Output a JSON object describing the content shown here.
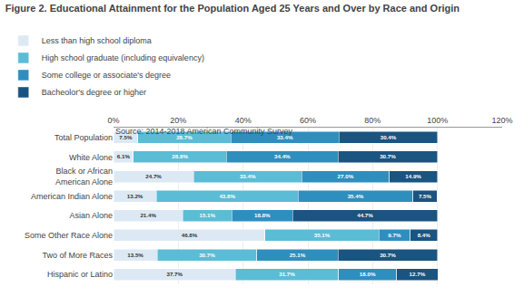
{
  "chart_data": {
    "type": "bar",
    "orientation": "horizontal",
    "stacked": true,
    "data_labels": true,
    "title": "Figure 2. Educational Attainment for the Population Aged 25 Years and Over by Race and Origin",
    "annotations": [
      "Source: 2014-2018 American Community Survey"
    ],
    "categories": [
      "Total Population",
      "White Alone",
      "Black or African\nAmerican Alone",
      "American Indian Alone",
      "Asian Alone",
      "Some Other Race Alone",
      "Two of More Races",
      "Hispanic or Latino"
    ],
    "series": [
      {
        "name": "Less than high school diploma",
        "color": "#dce9f5",
        "values": [
          7.5,
          6.1,
          24.7,
          13.2,
          21.4,
          46.8,
          13.5,
          37.7
        ],
        "value_labels": [
          "7.5%",
          "6.1%",
          "24.7%",
          "13.2%",
          "21.4%",
          "46.8%",
          "13.5%",
          "37.7%"
        ]
      },
      {
        "name": "High school graduate (including equivalency)",
        "color": "#5bbcd6",
        "values": [
          28.7,
          28.8,
          33.4,
          43.8,
          15.1,
          35.1,
          30.7,
          31.7
        ],
        "value_labels": [
          "28.7%",
          "28.8%",
          "33.4%",
          "43.8%",
          "15.1%",
          "35.1%",
          "30.7%",
          "31.7%"
        ]
      },
      {
        "name": "Some college or associate's degree",
        "color": "#2e8fbf",
        "values": [
          33.4,
          34.4,
          27.0,
          35.4,
          18.8,
          9.7,
          25.1,
          18.0
        ],
        "value_labels": [
          "33.4%",
          "34.4%",
          "27.0%",
          "35.4%",
          "18.8%",
          "9.7%",
          "25.1%",
          "18.0%"
        ]
      },
      {
        "name": "Bacheolor's degree or higher",
        "color": "#1a5480",
        "values": [
          30.4,
          30.7,
          14.9,
          7.5,
          44.7,
          8.4,
          30.7,
          12.7
        ],
        "value_labels": [
          "30.4%",
          "30.7%",
          "14.9%",
          "7.5%",
          "44.7%",
          "8.4%",
          "30.7%",
          "12.7%"
        ]
      }
    ],
    "xlim": [
      0,
      120
    ],
    "xticks": [
      {
        "value": 0,
        "label": "0%"
      },
      {
        "value": 20,
        "label": "20%"
      },
      {
        "value": 40,
        "label": "40%"
      },
      {
        "value": 60,
        "label": "60%"
      },
      {
        "value": 80,
        "label": "80%"
      },
      {
        "value": 100,
        "label": "100%"
      },
      {
        "value": 120,
        "label": "120%"
      }
    ],
    "grid": true,
    "legend": "top"
  }
}
